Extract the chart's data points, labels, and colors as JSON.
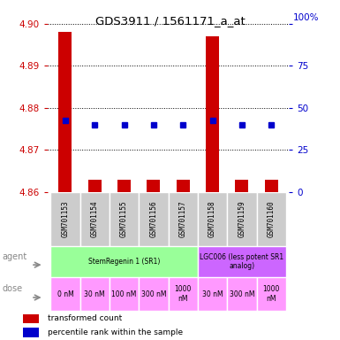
{
  "title": "GDS3911 / 1561171_a_at",
  "samples": [
    "GSM701153",
    "GSM701154",
    "GSM701155",
    "GSM701156",
    "GSM701157",
    "GSM701158",
    "GSM701159",
    "GSM701160"
  ],
  "bar_values": [
    4.898,
    4.863,
    4.863,
    4.863,
    4.863,
    4.897,
    4.863,
    4.863
  ],
  "bar_base": 4.86,
  "dot_values": [
    4.877,
    4.876,
    4.876,
    4.876,
    4.876,
    4.877,
    4.876,
    4.876
  ],
  "ylim": [
    4.86,
    4.9
  ],
  "yticks": [
    4.86,
    4.87,
    4.88,
    4.89,
    4.9
  ],
  "right_yticks": [
    0,
    25,
    50,
    75,
    100
  ],
  "right_ylim": [
    0,
    100
  ],
  "bar_color": "#cc0000",
  "dot_color": "#0000cc",
  "bg_color": "#ffffff",
  "agent_row": [
    {
      "label": "StemRegenin 1 (SR1)",
      "start": 0,
      "end": 5,
      "color": "#99ff99"
    },
    {
      "label": "LGC006 (less potent SR1\nanalog)",
      "start": 5,
      "end": 8,
      "color": "#cc66ff"
    }
  ],
  "dose_row": [
    {
      "label": "0 nM",
      "start": 0,
      "end": 1,
      "color": "#ff99ff"
    },
    {
      "label": "30 nM",
      "start": 1,
      "end": 2,
      "color": "#ff99ff"
    },
    {
      "label": "100 nM",
      "start": 2,
      "end": 3,
      "color": "#ff99ff"
    },
    {
      "label": "300 nM",
      "start": 3,
      "end": 4,
      "color": "#ff99ff"
    },
    {
      "label": "1000\nnM",
      "start": 4,
      "end": 5,
      "color": "#ff99ff"
    },
    {
      "label": "30 nM",
      "start": 5,
      "end": 6,
      "color": "#ff99ff"
    },
    {
      "label": "300 nM",
      "start": 6,
      "end": 7,
      "color": "#ff99ff"
    },
    {
      "label": "1000\nnM",
      "start": 7,
      "end": 8,
      "color": "#ff99ff"
    }
  ],
  "sample_bg_color": "#cccccc",
  "legend_bar_label": "transformed count",
  "legend_dot_label": "percentile rank within the sample",
  "left_label_color": "#cc0000",
  "right_label_color": "#0000cc",
  "arrow_color": "#888888"
}
